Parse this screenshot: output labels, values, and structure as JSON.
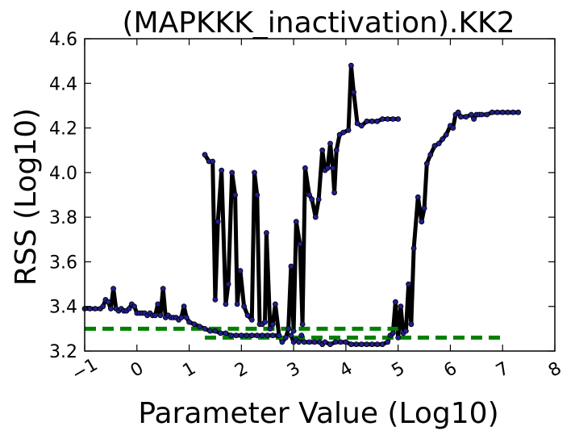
{
  "chart_data": {
    "type": "line",
    "title": "(MAPKKK_inactivation).KK2",
    "xlabel": "Parameter Value (Log10)",
    "ylabel": "RSS (Log10)",
    "xlim": [
      -1,
      8
    ],
    "ylim": [
      3.2,
      4.6
    ],
    "x_ticks": [
      "−1",
      "0",
      "1",
      "2",
      "3",
      "4",
      "5",
      "6",
      "7",
      "8"
    ],
    "y_ticks": [
      "3.2",
      "3.4",
      "3.6",
      "3.8",
      "4.0",
      "4.2",
      "4.4",
      "4.6"
    ],
    "grid": false,
    "colors": {
      "line": "#000000",
      "marker": "#1f1f8f",
      "threshold": "#008000"
    },
    "series": [
      {
        "values": [
          [
            -1.0,
            3.39
          ],
          [
            -0.9,
            3.39
          ],
          [
            -0.8,
            3.39
          ],
          [
            -0.7,
            3.39
          ],
          [
            -0.65,
            3.4
          ],
          [
            -0.6,
            3.43
          ],
          [
            -0.55,
            3.42
          ],
          [
            -0.5,
            3.39
          ],
          [
            -0.45,
            3.48
          ],
          [
            -0.4,
            3.39
          ],
          [
            -0.35,
            3.38
          ],
          [
            -0.3,
            3.39
          ],
          [
            -0.25,
            3.38
          ],
          [
            -0.2,
            3.38
          ],
          [
            -0.15,
            3.39
          ],
          [
            -0.1,
            3.41
          ],
          [
            -0.05,
            3.4
          ],
          [
            0.0,
            3.37
          ],
          [
            0.05,
            3.37
          ],
          [
            0.1,
            3.37
          ],
          [
            0.15,
            3.37
          ],
          [
            0.2,
            3.36
          ],
          [
            0.25,
            3.37
          ],
          [
            0.3,
            3.36
          ],
          [
            0.35,
            3.36
          ],
          [
            0.4,
            3.41
          ],
          [
            0.45,
            3.36
          ],
          [
            0.5,
            3.48
          ],
          [
            0.55,
            3.35
          ],
          [
            0.6,
            3.36
          ],
          [
            0.65,
            3.35
          ],
          [
            0.7,
            3.35
          ],
          [
            0.75,
            3.35
          ],
          [
            0.8,
            3.34
          ],
          [
            0.85,
            3.35
          ],
          [
            0.9,
            3.4
          ],
          [
            0.95,
            3.35
          ],
          [
            1.0,
            3.33
          ],
          [
            1.1,
            3.32
          ],
          [
            1.2,
            3.31
          ],
          [
            1.3,
            3.3
          ],
          [
            1.4,
            3.29
          ],
          [
            1.5,
            3.29
          ],
          [
            1.6,
            3.28
          ],
          [
            1.7,
            3.28
          ],
          [
            1.8,
            3.27
          ],
          [
            1.9,
            3.27
          ],
          [
            2.0,
            3.27
          ],
          [
            2.1,
            3.27
          ],
          [
            2.2,
            3.27
          ],
          [
            2.3,
            3.27
          ],
          [
            2.4,
            3.27
          ],
          [
            2.5,
            3.27
          ],
          [
            2.6,
            3.27
          ],
          [
            2.7,
            3.27
          ]
        ]
      },
      {
        "values": [
          [
            1.3,
            4.08
          ],
          [
            1.38,
            4.05
          ],
          [
            1.45,
            4.05
          ],
          [
            1.5,
            3.43
          ],
          [
            1.55,
            3.78
          ],
          [
            1.62,
            4.01
          ],
          [
            1.7,
            3.41
          ],
          [
            1.75,
            3.5
          ],
          [
            1.82,
            4.0
          ],
          [
            1.88,
            3.9
          ],
          [
            1.92,
            3.41
          ],
          [
            1.98,
            3.56
          ],
          [
            2.05,
            3.4
          ],
          [
            2.12,
            3.36
          ],
          [
            2.2,
            3.34
          ],
          [
            2.25,
            4.0
          ],
          [
            2.3,
            3.9
          ],
          [
            2.35,
            3.32
          ],
          [
            2.4,
            3.32
          ],
          [
            2.45,
            3.33
          ],
          [
            2.48,
            3.73
          ],
          [
            2.55,
            3.3
          ],
          [
            2.6,
            3.32
          ],
          [
            2.65,
            3.41
          ],
          [
            2.72,
            3.27
          ],
          [
            2.78,
            3.24
          ],
          [
            2.85,
            3.26
          ],
          [
            2.9,
            3.3
          ],
          [
            2.95,
            3.58
          ],
          [
            3.0,
            3.29
          ],
          [
            3.05,
            3.78
          ],
          [
            3.12,
            3.68
          ],
          [
            3.17,
            3.32
          ],
          [
            3.22,
            4.02
          ],
          [
            3.3,
            3.9
          ],
          [
            3.35,
            3.88
          ],
          [
            3.42,
            3.8
          ],
          [
            3.48,
            3.88
          ],
          [
            3.55,
            4.1
          ],
          [
            3.6,
            4.01
          ],
          [
            3.65,
            4.02
          ],
          [
            3.7,
            4.13
          ],
          [
            3.75,
            4.02
          ],
          [
            3.78,
            3.91
          ],
          [
            3.82,
            4.1
          ],
          [
            3.88,
            4.17
          ],
          [
            3.95,
            4.18
          ],
          [
            4.05,
            4.19
          ],
          [
            4.1,
            4.48
          ],
          [
            4.15,
            4.36
          ],
          [
            4.22,
            4.22
          ],
          [
            4.3,
            4.21
          ],
          [
            4.4,
            4.23
          ],
          [
            4.5,
            4.23
          ],
          [
            4.6,
            4.23
          ],
          [
            4.7,
            4.24
          ],
          [
            4.8,
            4.24
          ],
          [
            4.9,
            4.24
          ],
          [
            5.0,
            4.24
          ]
        ]
      },
      {
        "values": [
          [
            2.95,
            3.27
          ],
          [
            3.0,
            3.24
          ],
          [
            3.05,
            3.25
          ],
          [
            3.1,
            3.24
          ],
          [
            3.15,
            3.27
          ],
          [
            3.2,
            3.24
          ],
          [
            3.3,
            3.24
          ],
          [
            3.4,
            3.24
          ],
          [
            3.5,
            3.24
          ],
          [
            3.55,
            3.23
          ],
          [
            3.6,
            3.24
          ],
          [
            3.7,
            3.23
          ],
          [
            3.8,
            3.24
          ],
          [
            3.9,
            3.24
          ],
          [
            4.0,
            3.24
          ],
          [
            4.1,
            3.23
          ],
          [
            4.2,
            3.23
          ],
          [
            4.3,
            3.23
          ],
          [
            4.4,
            3.23
          ],
          [
            4.5,
            3.23
          ],
          [
            4.6,
            3.23
          ],
          [
            4.7,
            3.23
          ],
          [
            4.8,
            3.24
          ],
          [
            4.85,
            3.27
          ],
          [
            4.9,
            3.28
          ],
          [
            4.95,
            3.42
          ],
          [
            5.0,
            3.26
          ],
          [
            5.05,
            3.4
          ],
          [
            5.1,
            3.28
          ],
          [
            5.15,
            3.29
          ],
          [
            5.2,
            3.5
          ],
          [
            5.25,
            3.32
          ],
          [
            5.3,
            3.66
          ],
          [
            5.38,
            3.89
          ],
          [
            5.45,
            3.78
          ],
          [
            5.5,
            3.84
          ],
          [
            5.55,
            4.04
          ],
          [
            5.62,
            4.08
          ],
          [
            5.7,
            4.12
          ],
          [
            5.78,
            4.13
          ],
          [
            5.85,
            4.15
          ],
          [
            5.92,
            4.17
          ],
          [
            6.0,
            4.21
          ],
          [
            6.05,
            4.2
          ],
          [
            6.1,
            4.26
          ],
          [
            6.15,
            4.27
          ],
          [
            6.2,
            4.25
          ],
          [
            6.3,
            4.25
          ],
          [
            6.4,
            4.26
          ],
          [
            6.45,
            4.24
          ],
          [
            6.5,
            4.26
          ],
          [
            6.55,
            4.26
          ],
          [
            6.6,
            4.26
          ],
          [
            6.7,
            4.26
          ],
          [
            6.8,
            4.27
          ],
          [
            6.9,
            4.27
          ],
          [
            7.0,
            4.27
          ],
          [
            7.1,
            4.27
          ],
          [
            7.2,
            4.27
          ],
          [
            7.3,
            4.27
          ]
        ]
      }
    ],
    "thresholds": [
      {
        "x": [
          -1.0,
          1.4
        ],
        "y": 3.3
      },
      {
        "x": [
          1.4,
          5.0
        ],
        "y": 3.3
      },
      {
        "x": [
          1.3,
          7.0
        ],
        "y": 3.26
      }
    ]
  }
}
